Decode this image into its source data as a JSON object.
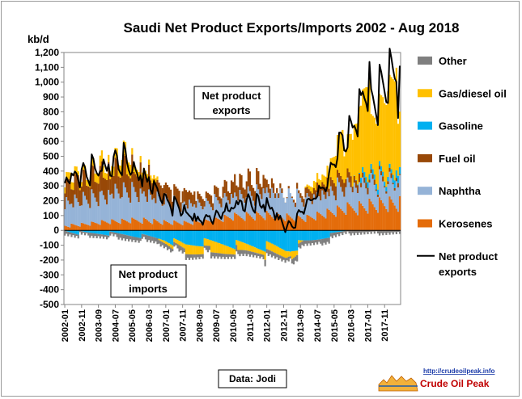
{
  "chart_data": {
    "type": "bar",
    "stacked": true,
    "title": "Saudi  Net Product  Exports/Imports  2002 - Aug 2018",
    "ylabel": "kb/d",
    "ylim": [
      -500,
      1200
    ],
    "y_ticks": [
      1200,
      1100,
      1000,
      900,
      800,
      700,
      600,
      500,
      400,
      300,
      200,
      100,
      0,
      -100,
      -200,
      -300,
      -400,
      -500
    ],
    "y_tick_labels": [
      "1,200",
      "1,100",
      "1,000",
      "900",
      "800",
      "700",
      "600",
      "500",
      "400",
      "300",
      "200",
      "100",
      "0",
      "-100",
      "-200",
      "-300",
      "-400",
      "-500"
    ],
    "x_tick_labels": [
      "2002-01",
      "2002-11",
      "2003-09",
      "2004-07",
      "2005-05",
      "2006-03",
      "2007-01",
      "2007-11",
      "2008-09",
      "2009-07",
      "2010-05",
      "2011-03",
      "2012-01",
      "2012-11",
      "2013-09",
      "2014-07",
      "2015-05",
      "2016-03",
      "2017-01",
      "2017-11"
    ],
    "period": {
      "start": "2002-01",
      "end": "2018-08"
    },
    "grid": false,
    "legend_position": "right",
    "series": [
      {
        "name": "Other",
        "color": "#7f7f7f"
      },
      {
        "name": "Gas/diesel oil",
        "color": "#ffc000"
      },
      {
        "name": "Gasoline",
        "color": "#00b0f0"
      },
      {
        "name": "Fuel oil",
        "color": "#984807"
      },
      {
        "name": "Naphtha",
        "color": "#95b3d7"
      },
      {
        "name": "Kerosenes",
        "color": "#e46c0a"
      },
      {
        "name": "Net product exports",
        "color": "#000000",
        "type": "line"
      }
    ],
    "anchors_by_year": {
      "years": [
        2002,
        2003,
        2004,
        2005,
        2006,
        2007,
        2008,
        2009,
        2010,
        2011,
        2012,
        2013,
        2014,
        2015,
        2016,
        2017,
        2018
      ],
      "Kerosenes": [
        30,
        40,
        55,
        60,
        70,
        55,
        50,
        60,
        80,
        100,
        105,
        90,
        80,
        110,
        140,
        170,
        180
      ],
      "Naphtha": [
        150,
        170,
        185,
        190,
        175,
        150,
        120,
        110,
        130,
        150,
        150,
        140,
        130,
        140,
        140,
        150,
        150
      ],
      "Fuel oil": [
        130,
        140,
        150,
        160,
        130,
        100,
        90,
        50,
        80,
        110,
        80,
        0,
        50,
        80,
        70,
        30,
        20
      ],
      "Gasoline": [
        0,
        -20,
        -20,
        -30,
        -40,
        -60,
        -100,
        -80,
        -90,
        -100,
        -110,
        -130,
        -80,
        -40,
        0,
        30,
        40
      ],
      "Gas/diesel oil": [
        40,
        40,
        60,
        80,
        40,
        -10,
        -50,
        -60,
        -60,
        -40,
        -40,
        -60,
        10,
        80,
        300,
        500,
        520
      ],
      "Other": [
        -20,
        -20,
        -20,
        -30,
        -30,
        -30,
        -30,
        -30,
        -30,
        -30,
        -30,
        -30,
        -30,
        -30,
        -20,
        -20,
        -20
      ],
      "Net product exports": [
        350,
        400,
        470,
        500,
        350,
        230,
        150,
        60,
        170,
        200,
        200,
        10,
        150,
        340,
        690,
        940,
        1090
      ]
    }
  },
  "annotations": {
    "exports_line1": "Net product",
    "exports_line2": "exports",
    "imports_line1": "Net product",
    "imports_line2": "imports"
  },
  "source_label": "Data: Jodi",
  "logo": {
    "url": "http://crudeoilpeak.info",
    "name": "Crude Oil Peak"
  }
}
